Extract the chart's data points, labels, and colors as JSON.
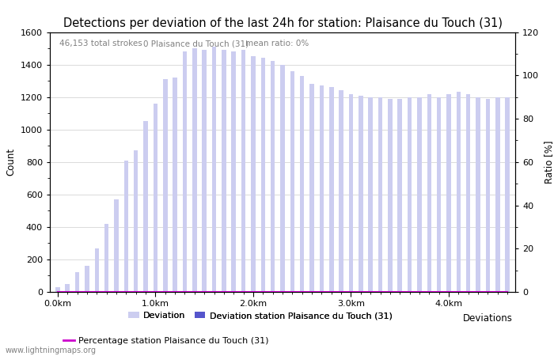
{
  "title": "Detections per deviation of the last 24h for station: Plaisance du Touch (31)",
  "annotation1": "46,153 total strokes",
  "annotation2": "0 Plaisance du Touch (31)",
  "annotation3": "mean ratio: 0%",
  "ylabel_left": "Count",
  "ylabel_right": "Ratio [%]",
  "legend_xlabel": "Deviations",
  "ylim_left": [
    0,
    1600
  ],
  "ylim_right": [
    0,
    120
  ],
  "yticks_left": [
    0,
    200,
    400,
    600,
    800,
    1000,
    1200,
    1400,
    1600
  ],
  "yticks_right": [
    0,
    20,
    40,
    60,
    80,
    100,
    120
  ],
  "xtick_labels": [
    "0.0km",
    "1.0km",
    "2.0km",
    "3.0km",
    "4.0km"
  ],
  "xtick_positions": [
    0,
    10,
    20,
    30,
    40
  ],
  "bar_color_all": "#cccdf0",
  "bar_color_station": "#5555cc",
  "line_color": "#cc00cc",
  "background_color": "#ffffff",
  "grid_color": "#cccccc",
  "watermark": "www.lightningmaps.org",
  "legend_items": [
    "Deviation",
    "Deviation station Plaisance du Touch (31)",
    "Percentage station Plaisance du Touch (31)"
  ],
  "all_deviations": [
    30,
    50,
    120,
    160,
    270,
    420,
    570,
    810,
    870,
    1050,
    1160,
    1310,
    1320,
    1480,
    1500,
    1490,
    1510,
    1490,
    1480,
    1490,
    1450,
    1440,
    1420,
    1400,
    1360,
    1330,
    1280,
    1270,
    1260,
    1240,
    1220,
    1210,
    1200,
    1200,
    1190,
    1190,
    1200,
    1200,
    1220,
    1200,
    1220,
    1230,
    1220,
    1200,
    1190,
    1200,
    1200
  ],
  "station_deviations": [
    0,
    0,
    0,
    0,
    0,
    0,
    0,
    0,
    0,
    0,
    0,
    0,
    0,
    0,
    0,
    0,
    0,
    0,
    0,
    0,
    0,
    0,
    0,
    0,
    0,
    0,
    0,
    0,
    0,
    0,
    0,
    0,
    0,
    0,
    0,
    0,
    0,
    0,
    0,
    0,
    0,
    0,
    0,
    0,
    0,
    0,
    0
  ],
  "percentages": [
    0,
    0,
    0,
    0,
    0,
    0,
    0,
    0,
    0,
    0,
    0,
    0,
    0,
    0,
    0,
    0,
    0,
    0,
    0,
    0,
    0,
    0,
    0,
    0,
    0,
    0,
    0,
    0,
    0,
    0,
    0,
    0,
    0,
    0,
    0,
    0,
    0,
    0,
    0,
    0,
    0,
    0,
    0,
    0,
    0,
    0,
    0
  ],
  "title_fontsize": 10.5,
  "axis_fontsize": 8.5,
  "tick_fontsize": 8,
  "annotation_fontsize": 7.5,
  "watermark_fontsize": 7,
  "bar_width": 0.45
}
